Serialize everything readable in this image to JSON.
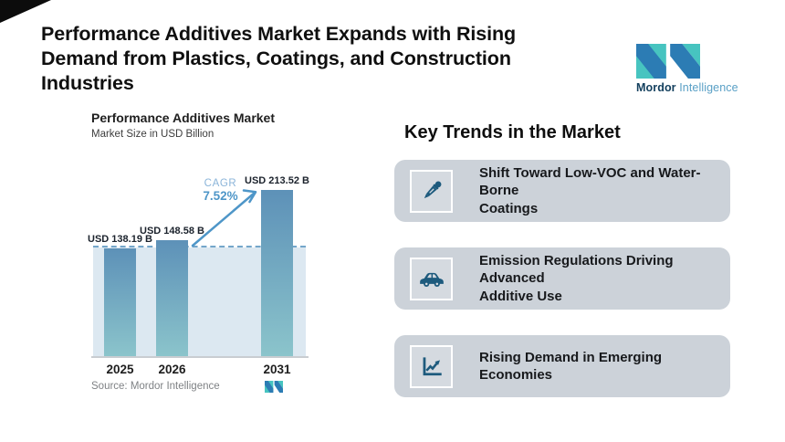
{
  "header": {
    "title_lines": [
      "Performance Additives Market Expands with Rising",
      "Demand from Plastics, Coatings, and Construction",
      "Industries"
    ]
  },
  "brand": {
    "name_bold": "Mordor",
    "name_light": "Intelligence"
  },
  "chart": {
    "title": "Performance Additives Market",
    "subtitle": "Market Size in USD Billion",
    "cagr_label": "CAGR",
    "cagr_value": "7.52%",
    "source": "Source: Mordor Intelligence"
  },
  "chart_data": {
    "type": "bar",
    "title": "Performance Additives Market",
    "ylabel": "Market Size in USD Billion",
    "categories": [
      "2025",
      "2026",
      "2031"
    ],
    "values": [
      138.19,
      148.58,
      213.52
    ],
    "value_labels": [
      "USD 138.19 B",
      "USD 148.58 B",
      "USD 213.52 B"
    ],
    "cagr": "7.52%",
    "baseline_reference": 138.19,
    "ylim": [
      0,
      235
    ],
    "grid": false,
    "legend": false
  },
  "trends": {
    "heading": "Key Trends in the Market",
    "cards": [
      {
        "icon": "dropper-icon",
        "lines": [
          "Shift Toward Low-VOC and Water-Borne",
          "Coatings"
        ]
      },
      {
        "icon": "car-icon",
        "lines": [
          "Emission Regulations Driving Advanced",
          "Additive Use"
        ]
      },
      {
        "icon": "line-chart-icon",
        "lines": [
          "Rising Demand in Emerging Economies"
        ]
      }
    ]
  },
  "colors": {
    "bar_top": "#5d91b8",
    "bar_bottom": "#8bc4cb",
    "area": "#dce8f1",
    "dashed": "#74a6ca",
    "accent": "#4e96c8",
    "card_bg": "#ccd2d9",
    "icon": "#1d5a7d",
    "logo_teal": "#47c4c0",
    "logo_blue": "#2c7cb4"
  }
}
